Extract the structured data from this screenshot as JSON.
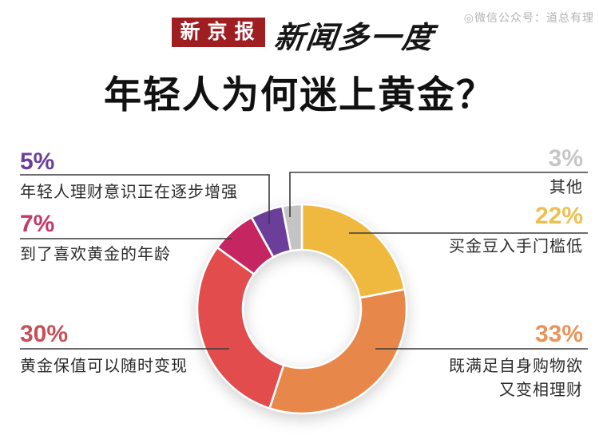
{
  "header": {
    "brand": "新京报",
    "series": "新闻多一度",
    "watermark": "◎微信公众号：道总有理"
  },
  "title": "年轻人为何迷上黄金？",
  "chart_data": {
    "type": "pie",
    "subtype": "donut",
    "title": "年轻人为何迷上黄金？",
    "unit": "%",
    "start_angle_deg": 0,
    "direction": "clockwise",
    "inner_radius_ratio": 0.565,
    "legend": "none",
    "segments": [
      {
        "label": "买金豆入手门槛低",
        "value": 22,
        "pct_label": "22%",
        "color": "#EFB93F",
        "pct_color": "#EDC050"
      },
      {
        "label": "既满足自身购物欲又变相理财",
        "label_lines": [
          "既满足自身购物欲",
          "又变相理财"
        ],
        "value": 33,
        "pct_label": "33%",
        "color": "#E8874A",
        "pct_color": "#E8935A"
      },
      {
        "label": "黄金保值可以随时变现",
        "value": 30,
        "pct_label": "30%",
        "color": "#E24C4C",
        "pct_color": "#C64F58"
      },
      {
        "label": "到了喜欢黄金的年龄",
        "value": 7,
        "pct_label": "7%",
        "color": "#C52561",
        "pct_color": "#C23A68"
      },
      {
        "label": "年轻人理财意识正在逐步增强",
        "value": 5,
        "pct_label": "5%",
        "color": "#6B3E99",
        "pct_color": "#6B3F98"
      },
      {
        "label": "其他",
        "value": 3,
        "pct_label": "3%",
        "color": "#C4C4C5",
        "pct_color": "#C6C6C6"
      }
    ]
  }
}
